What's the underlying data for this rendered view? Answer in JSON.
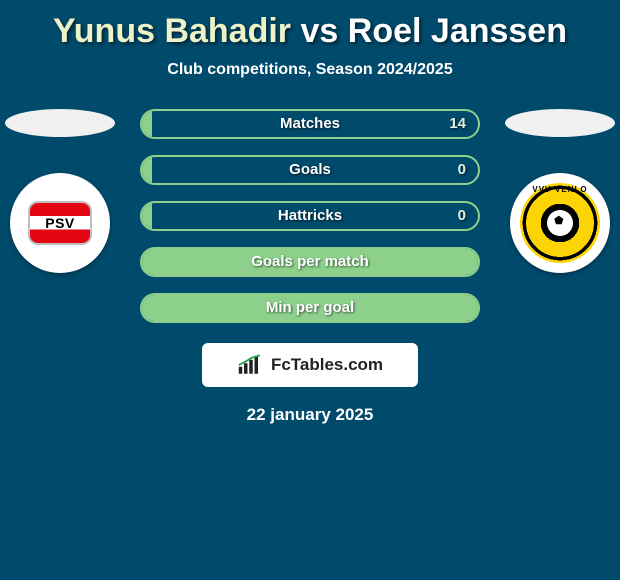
{
  "title": {
    "player1": "Yunus Bahadir",
    "vs": "vs",
    "player2": "Roel Janssen",
    "player1_color": "#eef3c7",
    "player2_color": "#ffffff"
  },
  "subtitle": "Club competitions, Season 2024/2025",
  "colors": {
    "background": "#004a6b",
    "bar_border": "#8cd08c",
    "bar_fill": "#8cd08c",
    "text": "#ffffff"
  },
  "clubs": {
    "left": {
      "name": "PSV",
      "badge_text": "PSV"
    },
    "right": {
      "name": "VVV-Venlo",
      "badge_text": "VVV·VENLO"
    }
  },
  "stats": [
    {
      "label": "Matches",
      "left_pct": 3,
      "value_right": "14"
    },
    {
      "label": "Goals",
      "left_pct": 3,
      "value_right": "0"
    },
    {
      "label": "Hattricks",
      "left_pct": 3,
      "value_right": "0"
    },
    {
      "label": "Goals per match",
      "left_pct": 100,
      "value_right": ""
    },
    {
      "label": "Min per goal",
      "left_pct": 100,
      "value_right": ""
    }
  ],
  "brand": "FcTables.com",
  "date": "22 january 2025"
}
